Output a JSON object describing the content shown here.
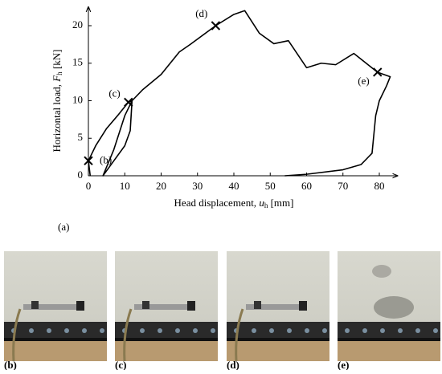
{
  "chart_data": {
    "type": "line",
    "xlabel": {
      "text": "Head displacement, ",
      "var": "u",
      "sub": "h",
      "unit": " [mm]"
    },
    "ylabel": {
      "text": "Horizontal load, ",
      "var": "F",
      "sub": "h",
      "unit": " [kN]"
    },
    "x": [
      0.5,
      0,
      2,
      5,
      8,
      11,
      12,
      11.5,
      10,
      7,
      4,
      7,
      10,
      12,
      15,
      20,
      25,
      28,
      35,
      40,
      43,
      47,
      51,
      55,
      60,
      64,
      68,
      73,
      79.5,
      83,
      82,
      80,
      79,
      78,
      77,
      75,
      70,
      60,
      54
    ],
    "values": [
      0,
      2,
      4,
      6.3,
      8,
      9.8,
      10,
      6,
      4,
      2,
      0,
      3.5,
      8,
      10,
      11.5,
      13.5,
      16.5,
      17.5,
      20,
      21.5,
      22,
      19,
      17.6,
      18,
      14.4,
      15,
      14.8,
      16.3,
      13.8,
      13.2,
      12,
      10,
      8,
      3,
      2.5,
      1.5,
      0.8,
      0.2,
      0
    ],
    "color": "#000000",
    "markers": [
      {
        "x": 0,
        "y": 2,
        "label": "(b)"
      },
      {
        "x": 11,
        "y": 9.8,
        "label": "(c)"
      },
      {
        "x": 35,
        "y": 20,
        "label": "(d)"
      },
      {
        "x": 79.5,
        "y": 13.8,
        "label": "(e)"
      }
    ],
    "xlim": [
      0,
      85
    ],
    "ylim": [
      0,
      22.5
    ],
    "xticks": [
      0,
      10,
      20,
      30,
      40,
      50,
      60,
      70,
      80
    ],
    "yticks": [
      0,
      5,
      10,
      15,
      20
    ]
  },
  "panel_label": "(a)",
  "photos": [
    {
      "label": "(b)"
    },
    {
      "label": "(c)"
    },
    {
      "label": "(d)"
    },
    {
      "label": "(e)"
    }
  ]
}
